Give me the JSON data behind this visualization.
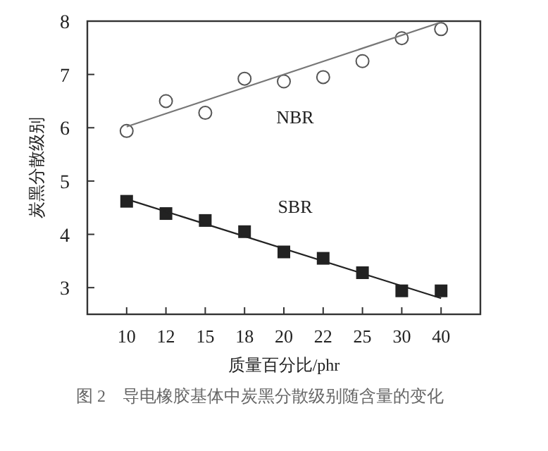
{
  "chart_data": {
    "type": "scatter",
    "categories": [
      "10",
      "12",
      "15",
      "18",
      "20",
      "22",
      "25",
      "30",
      "40"
    ],
    "xlabel": "质量百分比/phr",
    "ylabel": "炭黑分散级别",
    "ylim": [
      2.5,
      8
    ],
    "yticks": [
      3,
      4,
      5,
      6,
      7,
      8
    ],
    "annotations": [
      "图 2　导电橡胶基体中炭黑分散级别随含量的变化"
    ],
    "series": [
      {
        "name": "NBR",
        "color": "#555555",
        "marker": "circle",
        "values": [
          5.94,
          6.5,
          6.28,
          6.92,
          6.87,
          6.95,
          7.25,
          7.68,
          7.85
        ]
      },
      {
        "name": "SBR",
        "color": "#222222",
        "marker": "square",
        "values": [
          4.62,
          4.39,
          4.26,
          4.05,
          3.67,
          3.55,
          3.28,
          2.94,
          2.94
        ]
      },
      {
        "type": "line",
        "color": "#777777",
        "x": [
          "10",
          "40"
        ],
        "values": [
          6.02,
          7.98
        ]
      },
      {
        "type": "line",
        "color": "#222222",
        "x": [
          "10",
          "40"
        ],
        "values": [
          4.66,
          2.8
        ]
      }
    ]
  }
}
